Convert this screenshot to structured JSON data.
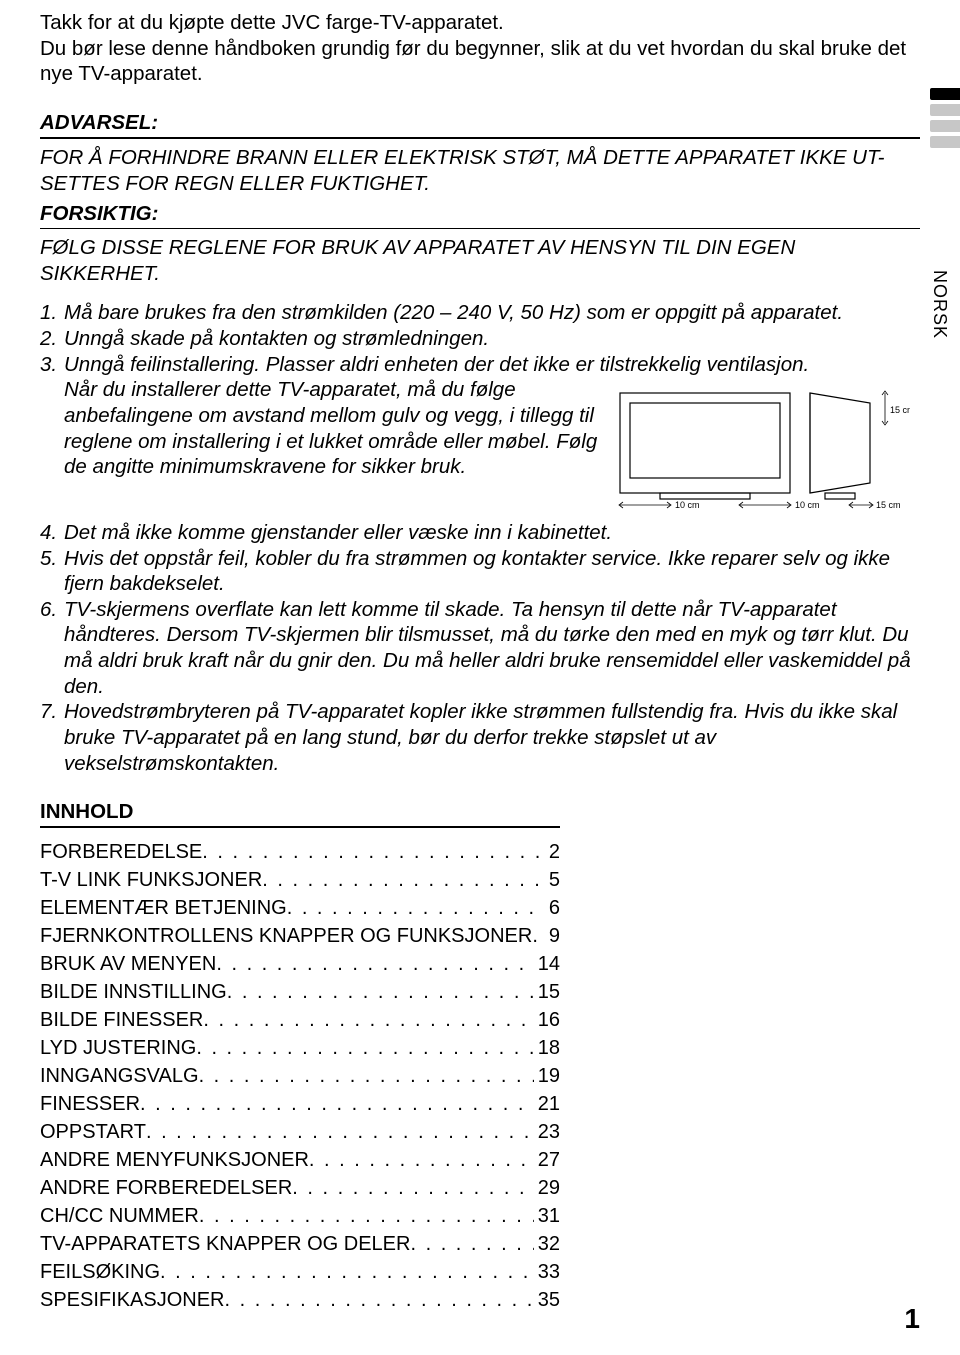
{
  "language_label": "NORSK",
  "intro": {
    "line1": "Takk for at du kjøpte dette JVC farge-TV-apparatet.",
    "line2": "Du bør lese denne håndboken grundig før du begynner, slik at du vet hvordan du skal bruke det nye TV-apparatet."
  },
  "warning": {
    "heading": "ADVARSEL:",
    "body": "FOR Å FORHINDRE BRANN ELLER ELEKTRISK STØT, MÅ DETTE APPARATET IKKE UT-SETTES FOR REGN ELLER FUKTIGHET."
  },
  "caution": {
    "heading": "FORSIKTIG:",
    "body": "FØLG DISSE REGLENE FOR BRUK AV APPARATET AV HENSYN TIL DIN EGEN SIKKERHET."
  },
  "rules": {
    "r1": "Må bare brukes fra den strømkilden (220 – 240 V, 50 Hz) som er oppgitt på apparatet.",
    "r2": "Unngå skade på kontakten og strømledningen.",
    "r3a": "Unngå feilinstallering. Plasser aldri enheten der det ikke er tilstrekkelig ventilasjon.",
    "r3b": "Når du installerer dette TV-apparatet, må du følge anbefalingene om avstand mellom gulv og vegg, i tillegg til reglene om installering i et lukket område eller møbel. Følg de angitte minimumskravene for sikker bruk.",
    "r4": "Det må ikke komme gjenstander eller væske inn i kabinettet.",
    "r5": "Hvis det oppstår feil, kobler du fra strømmen og kontakter service. Ikke reparer selv og ikke fjern bakdekselet.",
    "r6": "TV-skjermens overflate kan lett komme til skade. Ta hensyn til dette når TV-apparatet håndteres. Dersom TV-skjermen blir tilsmusset, må du tørke den med en myk og tørr klut. Du må aldri bruk kraft når du gnir den. Du må heller aldri bruke rensemiddel eller vaskemiddel på den.",
    "r7": "Hovedstrømbryteren på TV-apparatet kopler ikke strømmen fullstendig fra. Hvis du ikke skal bruke TV-apparatet på en lang stund, bør du derfor trekke støpslet ut av vekselstrømskontakten."
  },
  "diagram": {
    "dim_top": "15 cm",
    "dim_left": "10 cm",
    "dim_mid": "10 cm",
    "dim_right": "15 cm",
    "stroke": "#000000",
    "fill": "#ffffff"
  },
  "innhold_heading": "INNHOLD",
  "toc": [
    {
      "label": "FORBEREDELSE",
      "page": "2"
    },
    {
      "label": "T-V LINK FUNKSJONER",
      "page": "5"
    },
    {
      "label": "ELEMENTÆR BETJENING",
      "page": "6"
    },
    {
      "label": "FJERNKONTROLLENS KNAPPER OG FUNKSJONER",
      "page": "9"
    },
    {
      "label": "BRUK AV MENYEN",
      "page": "14"
    },
    {
      "label": "BILDE INNSTILLING",
      "page": "15"
    },
    {
      "label": "BILDE FINESSER",
      "page": "16"
    },
    {
      "label": "LYD JUSTERING",
      "page": "18"
    },
    {
      "label": "INNGANGSVALG",
      "page": "19"
    },
    {
      "label": "FINESSER",
      "page": "21"
    },
    {
      "label": "OPPSTART",
      "page": "23"
    },
    {
      "label": "ANDRE MENYFUNKSJONER",
      "page": "27"
    },
    {
      "label": "ANDRE FORBEREDELSER",
      "page": "29"
    },
    {
      "label": "CH/CC NUMMER",
      "page": "31"
    },
    {
      "label": "TV-APPARATETS KNAPPER OG DELER",
      "page": "32"
    },
    {
      "label": "FEILSØKING",
      "page": "33"
    },
    {
      "label": "SPESIFIKASJONER",
      "page": "35"
    }
  ],
  "page_number": "1",
  "tabs": {
    "active_index": 0,
    "colors": {
      "active": "#000000",
      "inactive": "#c7c7c7"
    }
  }
}
